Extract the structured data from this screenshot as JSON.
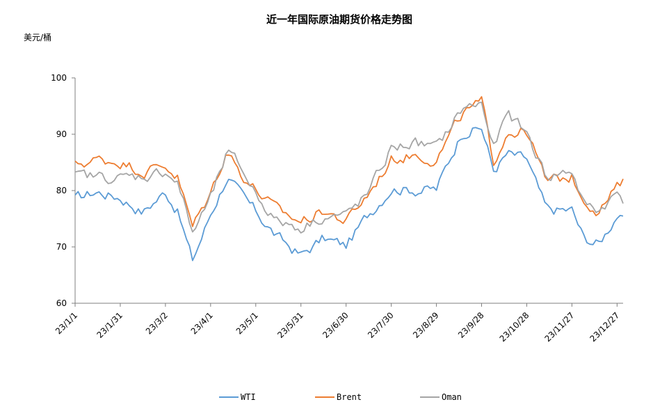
{
  "chart_data": {
    "type": "line",
    "title": "近一年国际原油期货价格走势图",
    "ylabel": "美元/桶",
    "xlabel": "",
    "ylim": [
      60,
      100
    ],
    "yticks": [
      60,
      70,
      80,
      90,
      100
    ],
    "xticks": [
      "23/1/1",
      "23/1/31",
      "23/3/2",
      "23/4/1",
      "23/5/1",
      "23/5/31",
      "23/6/30",
      "23/7/30",
      "23/8/29",
      "23/9/28",
      "23/10/28",
      "23/11/27",
      "23/12/27"
    ],
    "grid": false,
    "legend": "bottom",
    "x_dates": [
      "2023-01-01",
      "2023-01-15",
      "2023-01-31",
      "2023-02-15",
      "2023-03-02",
      "2023-03-10",
      "2023-03-20",
      "2023-04-01",
      "2023-04-12",
      "2023-04-20",
      "2023-05-01",
      "2023-05-15",
      "2023-05-31",
      "2023-06-15",
      "2023-06-30",
      "2023-07-15",
      "2023-07-30",
      "2023-08-15",
      "2023-08-29",
      "2023-09-15",
      "2023-09-28",
      "2023-10-06",
      "2023-10-15",
      "2023-10-28",
      "2023-11-10",
      "2023-11-27",
      "2023-12-05",
      "2023-12-15",
      "2023-12-27",
      "2023-12-31"
    ],
    "series": [
      {
        "name": "WTI",
        "color": "#5b9bd5",
        "values": [
          78.5,
          79.8,
          78.8,
          76.2,
          79.8,
          76.5,
          67.5,
          75.8,
          82.5,
          79.5,
          76.2,
          71.8,
          68.5,
          71.5,
          70.2,
          75.8,
          80.5,
          80.2,
          80.2,
          90.5,
          91.2,
          83.5,
          86.5,
          85.5,
          76.5,
          76.5,
          71.5,
          70.5,
          75.8,
          74.5
        ]
      },
      {
        "name": "Brent",
        "color": "#ed7d31",
        "values": [
          84.5,
          85.5,
          85.2,
          83.5,
          84.5,
          82.5,
          73.5,
          79.5,
          87.5,
          83.5,
          80.2,
          76.5,
          74.5,
          76.5,
          74.5,
          79.5,
          85.5,
          86.5,
          85.5,
          93.5,
          95.5,
          85.2,
          90.5,
          90.5,
          81.5,
          82.5,
          78.5,
          76.5,
          80.5,
          81.2
        ]
      },
      {
        "name": "Oman",
        "color": "#a5a5a5",
        "values": [
          82.5,
          82.5,
          82.2,
          82.5,
          83.5,
          81.5,
          72.5,
          78.5,
          86.5,
          84.5,
          79.5,
          74.5,
          73.5,
          75.5,
          75.5,
          79.5,
          87.5,
          88.5,
          87.5,
          94.5,
          95.5,
          87.5,
          93.5,
          90.2,
          82.5,
          83.5,
          77.5,
          76.5,
          79.5,
          78.5
        ]
      }
    ]
  }
}
